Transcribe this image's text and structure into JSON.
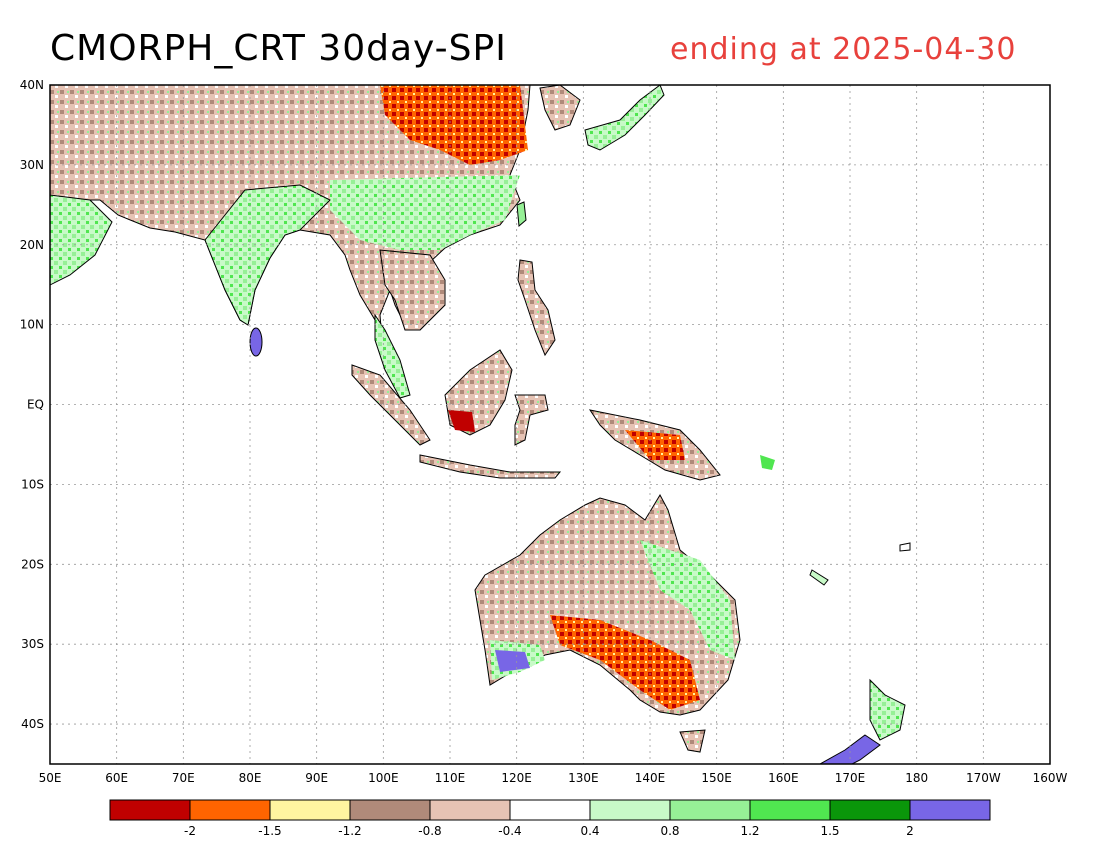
{
  "header": {
    "title": "CMORPH_CRT 30day-SPI",
    "subtitle": "ending at 2025-04-30",
    "subtitle_color": "#e8413c"
  },
  "map": {
    "lat_labels": [
      "40N",
      "30N",
      "20N",
      "10N",
      "EQ",
      "10S",
      "20S",
      "30S",
      "40S"
    ],
    "lon_labels": [
      "50E",
      "60E",
      "70E",
      "80E",
      "90E",
      "100E",
      "110E",
      "120E",
      "130E",
      "140E",
      "150E",
      "160E",
      "170E",
      "180",
      "170W",
      "160W"
    ],
    "lon_range": [
      50,
      200
    ],
    "lat_range": [
      -45,
      40
    ]
  },
  "legend": {
    "colors": [
      "#c00000",
      "#ff6400",
      "#fff5a0",
      "#b08a7a",
      "#e6c3b4",
      "#ffffff",
      "#c8fac8",
      "#96f096",
      "#50e650",
      "#0a960a",
      "#7866e6"
    ],
    "labels": [
      "-2",
      "-1.5",
      "-1.2",
      "-0.8",
      "-0.4",
      "0.4",
      "0.8",
      "1.2",
      "1.5",
      "2"
    ]
  }
}
